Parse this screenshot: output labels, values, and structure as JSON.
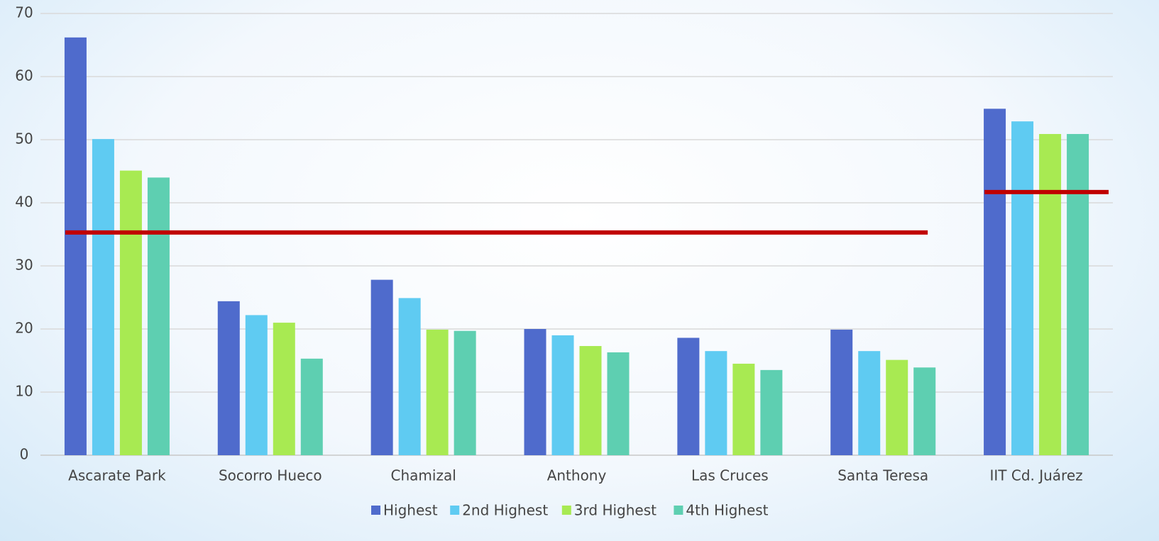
{
  "chart_data": {
    "type": "bar",
    "categories": [
      "Ascarate Park",
      "Socorro Hueco",
      "Chamizal",
      "Anthony",
      "Las Cruces",
      "Santa Teresa",
      "IIT Cd. Juárez"
    ],
    "series": [
      {
        "name": "Highest",
        "color": "#4f6bcc",
        "values": [
          66.2,
          24.4,
          27.8,
          20.0,
          18.6,
          19.9,
          54.9
        ]
      },
      {
        "name": "2nd Highest",
        "color": "#5fcbf2",
        "values": [
          50.1,
          22.2,
          24.9,
          19.0,
          16.5,
          16.5,
          52.9
        ]
      },
      {
        "name": "3rd Highest",
        "color": "#a8ea52",
        "values": [
          45.1,
          21.0,
          19.9,
          17.3,
          14.5,
          15.1,
          50.9
        ]
      },
      {
        "name": "4th Highest",
        "color": "#5ecfb1",
        "values": [
          44.0,
          15.3,
          19.7,
          16.3,
          13.5,
          13.9,
          50.9
        ]
      }
    ],
    "reference_lines": [
      {
        "value": 35.3,
        "color": "#c00000",
        "span": [
          0,
          5
        ]
      },
      {
        "value": 41.7,
        "color": "#c00000",
        "span": [
          6,
          6
        ]
      }
    ],
    "ylim": [
      0,
      70
    ],
    "yticks": [
      0,
      10,
      20,
      30,
      40,
      50,
      60,
      70
    ],
    "grid": true,
    "legend": "bottom"
  }
}
